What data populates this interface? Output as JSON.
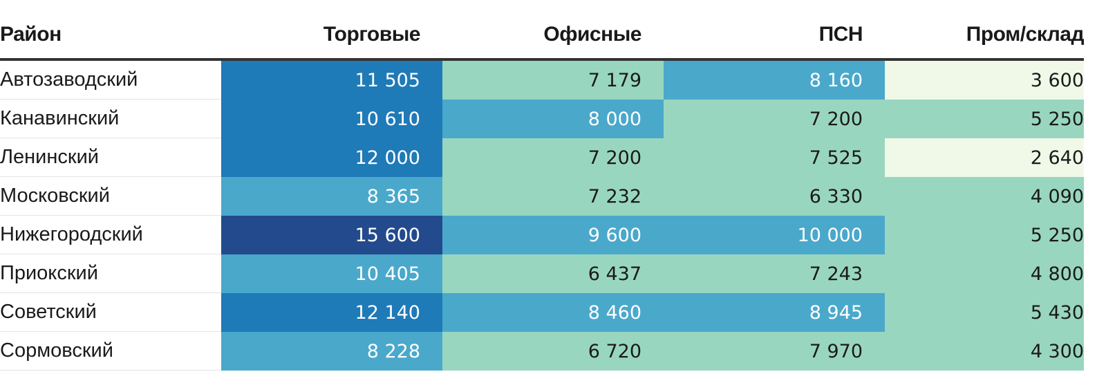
{
  "chart_data": {
    "type": "table",
    "columns": [
      "Район",
      "Торговые",
      "Офисные",
      "ПСН",
      "Пром/склад"
    ],
    "rows": [
      {
        "district": "Автозаводский",
        "values": [
          "11 505",
          "7 179",
          "8 160",
          "3 600"
        ],
        "numeric": [
          11505,
          7179,
          8160,
          3600
        ]
      },
      {
        "district": "Канавинский",
        "values": [
          "10 610",
          "8 000",
          "7 200",
          "5 250"
        ],
        "numeric": [
          10610,
          8000,
          7200,
          5250
        ]
      },
      {
        "district": "Ленинский",
        "values": [
          "12 000",
          "7 200",
          "7 525",
          "2 640"
        ],
        "numeric": [
          12000,
          7200,
          7525,
          2640
        ]
      },
      {
        "district": "Московский",
        "values": [
          "8 365",
          "7 232",
          "6 330",
          "4 090"
        ],
        "numeric": [
          8365,
          7232,
          6330,
          4090
        ]
      },
      {
        "district": "Нижегородский",
        "values": [
          "15 600",
          "9 600",
          "10 000",
          "5 250"
        ],
        "numeric": [
          15600,
          9600,
          10000,
          5250
        ]
      },
      {
        "district": "Приокский",
        "values": [
          "10 405",
          "6 437",
          "7 243",
          "4 800"
        ],
        "numeric": [
          10405,
          6437,
          7243,
          4800
        ]
      },
      {
        "district": "Советский",
        "values": [
          "12 140",
          "8 460",
          "8 945",
          "5 430"
        ],
        "numeric": [
          12140,
          8460,
          8945,
          5430
        ]
      },
      {
        "district": "Сормовский",
        "values": [
          "8 228",
          "6 720",
          "7 970",
          "4 300"
        ],
        "numeric": [
          8228,
          6720,
          7970,
          4300
        ]
      }
    ],
    "color_scale": {
      "thresholds": [
        4000,
        8000,
        10500,
        15000
      ],
      "colors": [
        "#f0f9e8",
        "#99d6c0",
        "#4aa8cb",
        "#1f7ab8",
        "#234a8c"
      ],
      "text_colors": [
        "#1a1a1a",
        "#1a1a1a",
        "#ffffff",
        "#ffffff",
        "#ffffff"
      ]
    }
  }
}
